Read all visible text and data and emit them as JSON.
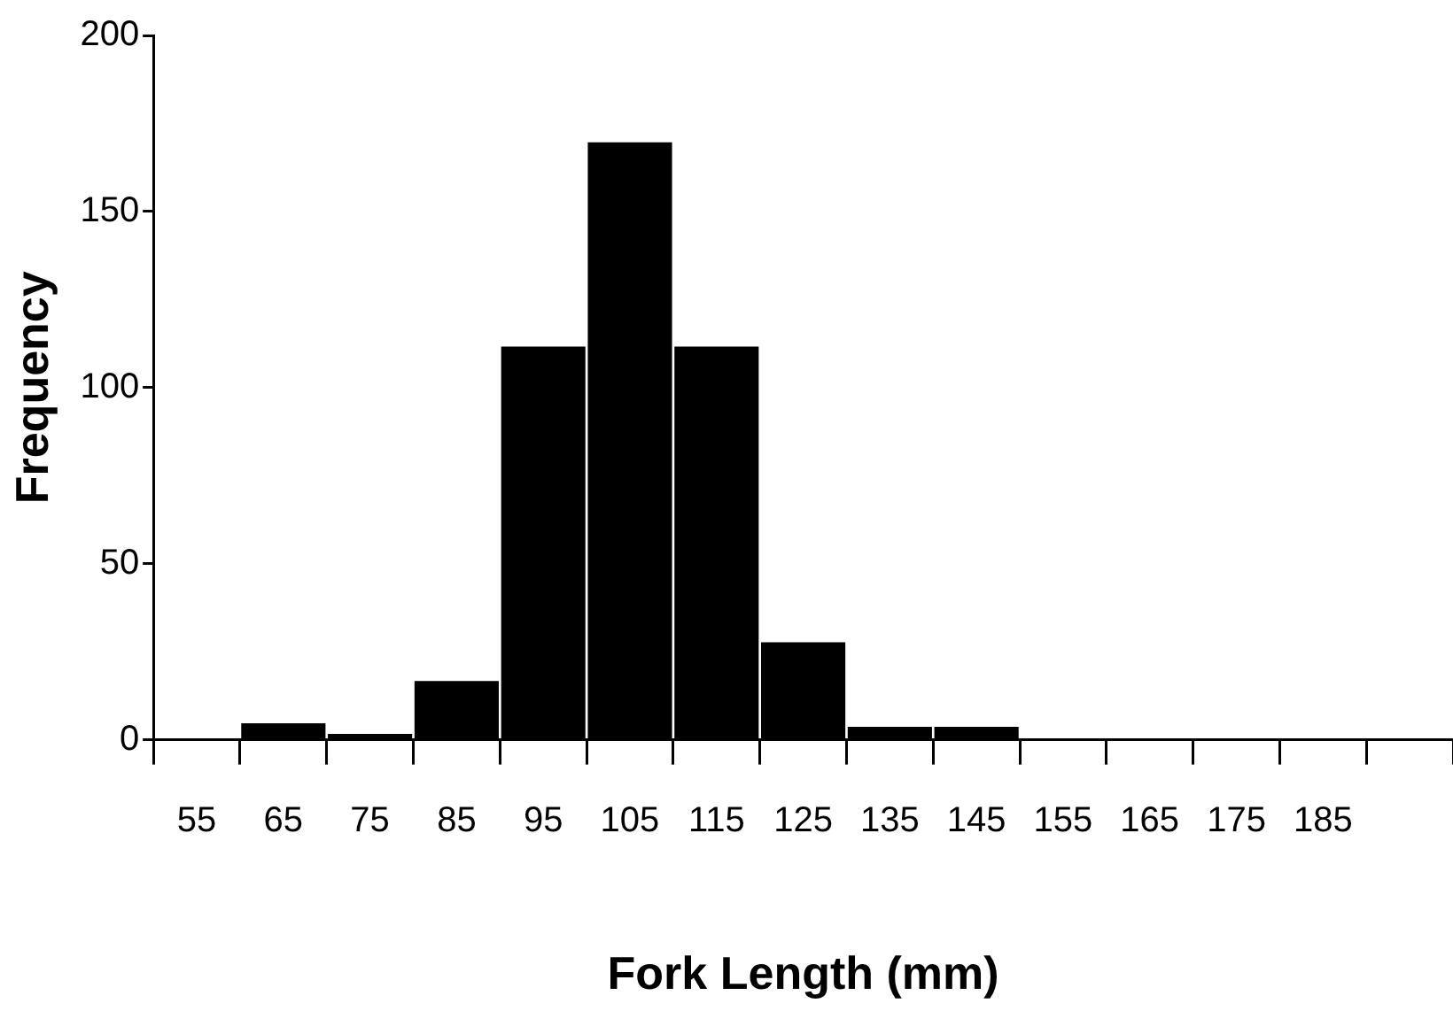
{
  "chart_data": {
    "type": "bar",
    "xlabel": "Fork Length (mm)",
    "ylabel": "Frequency",
    "categories": [
      "55",
      "65",
      "75",
      "85",
      "95",
      "105",
      "115",
      "125",
      "135",
      "145",
      "155",
      "165",
      "175",
      "185",
      null
    ],
    "values": [
      0,
      5,
      2,
      17,
      112,
      170,
      112,
      28,
      4,
      4,
      0,
      0,
      0,
      0,
      0
    ],
    "color": "#000000",
    "ylim": [
      0,
      200
    ],
    "yticks": [
      0,
      50,
      100,
      150,
      200
    ],
    "grid": false,
    "legend": false
  }
}
